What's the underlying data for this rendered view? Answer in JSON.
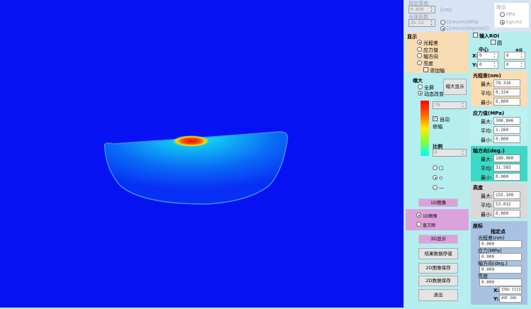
{
  "thickness": {
    "label": "指定厚度",
    "value": "0.010",
    "unit": "[cm]"
  },
  "coef": {
    "label": "光弹系数",
    "value": "25.53",
    "opt1": "[(nm/cm)/MPa]",
    "opt2": "[(nm/cm)/(kg/cm2)]"
  },
  "output": {
    "title": "输出",
    "opt1": "MPa",
    "opt2": "kg/cm2"
  },
  "display": {
    "title": "显示",
    "items": [
      "光程差",
      "应力值",
      "轴方向",
      "亮度"
    ],
    "add_axis": "添加轴"
  },
  "zoom": {
    "title": "缩大",
    "opt1": "全屏",
    "opt2": "动态改变",
    "button": "缩大显示",
    "max_value": "70",
    "auto": "自动",
    "axis": "修轴",
    "scale": "比例",
    "scale_value": "0",
    "shapes": [
      "□",
      "◇",
      "—"
    ]
  },
  "buttons": {
    "img1d": "1D图像",
    "opt_1d": "1D图像",
    "opt_hist": "直方图",
    "disp3d": "3D显示",
    "save_result": "结果数据存储",
    "save_2d_img": "2D图像保存",
    "save_2d_data": "2D数据保存",
    "exit": "退出"
  },
  "roi": {
    "title": "输入ROI",
    "circle": "圆",
    "center": "中心",
    "radius": "半径",
    "x": "X:",
    "y": "Y:",
    "cx": "0",
    "cy": "0",
    "rx": "0",
    "ry": "0"
  },
  "stats": [
    {
      "title": "光程差(nm)",
      "max": "78.316",
      "avg": "0.324",
      "min": "0.000",
      "color": "#fbdcb4"
    },
    {
      "title": "应力值(MPa)",
      "max": "306.846",
      "avg": "1.269",
      "min": "0.000",
      "color": "#bdf0f0"
    },
    {
      "title": "轴方向(deg.)",
      "max": "180.000",
      "avg": "31.583",
      "min": "0.000",
      "color": "#3ed8c6"
    },
    {
      "title": "高度",
      "max": "155.100",
      "avg": "53.032",
      "min": "0.000",
      "color": "#d9d9d9"
    }
  ],
  "stat_labels": {
    "max": "最大:",
    "avg": "平均:",
    "min": "最小:"
  },
  "coords": {
    "title": "座标",
    "point": "指定点",
    "opd": "光程差(nm)",
    "opd_v": "0.000",
    "stress": "应力(MPa)",
    "stress_v": "0.000",
    "axis": "轴方向(deg.)",
    "axis_v": "0.000",
    "bright": "亮度",
    "bright_v": "0.000",
    "x": "X:",
    "x_v": "1582  1113",
    "y": "Y:",
    "y_v": "495  348"
  }
}
